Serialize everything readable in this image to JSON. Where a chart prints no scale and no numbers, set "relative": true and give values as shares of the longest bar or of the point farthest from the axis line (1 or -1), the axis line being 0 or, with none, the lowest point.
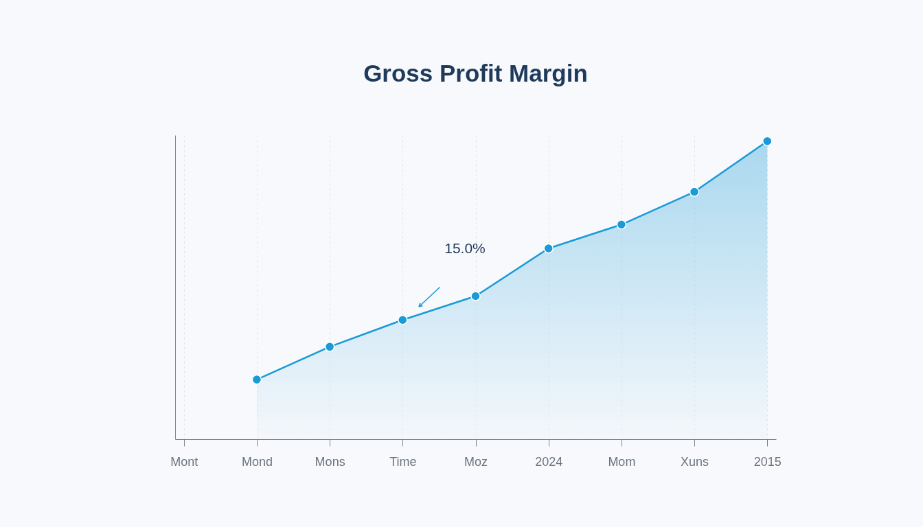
{
  "chart_data": {
    "type": "area",
    "title": "Gross Profit Margin",
    "relative": true,
    "categories": [
      "Mont",
      "Mond",
      "Mons",
      "Time",
      "Moz",
      "2024",
      "Mom",
      "Xuns",
      "2015"
    ],
    "series": [
      {
        "color": "#1a9ad6",
        "values": [
          null,
          0.2,
          0.31,
          0.4,
          0.48,
          0.64,
          0.72,
          0.83,
          1
        ]
      }
    ],
    "annotations": [
      "15.0%"
    ],
    "grid": "x",
    "marker": "circle",
    "line_style": "solid"
  }
}
